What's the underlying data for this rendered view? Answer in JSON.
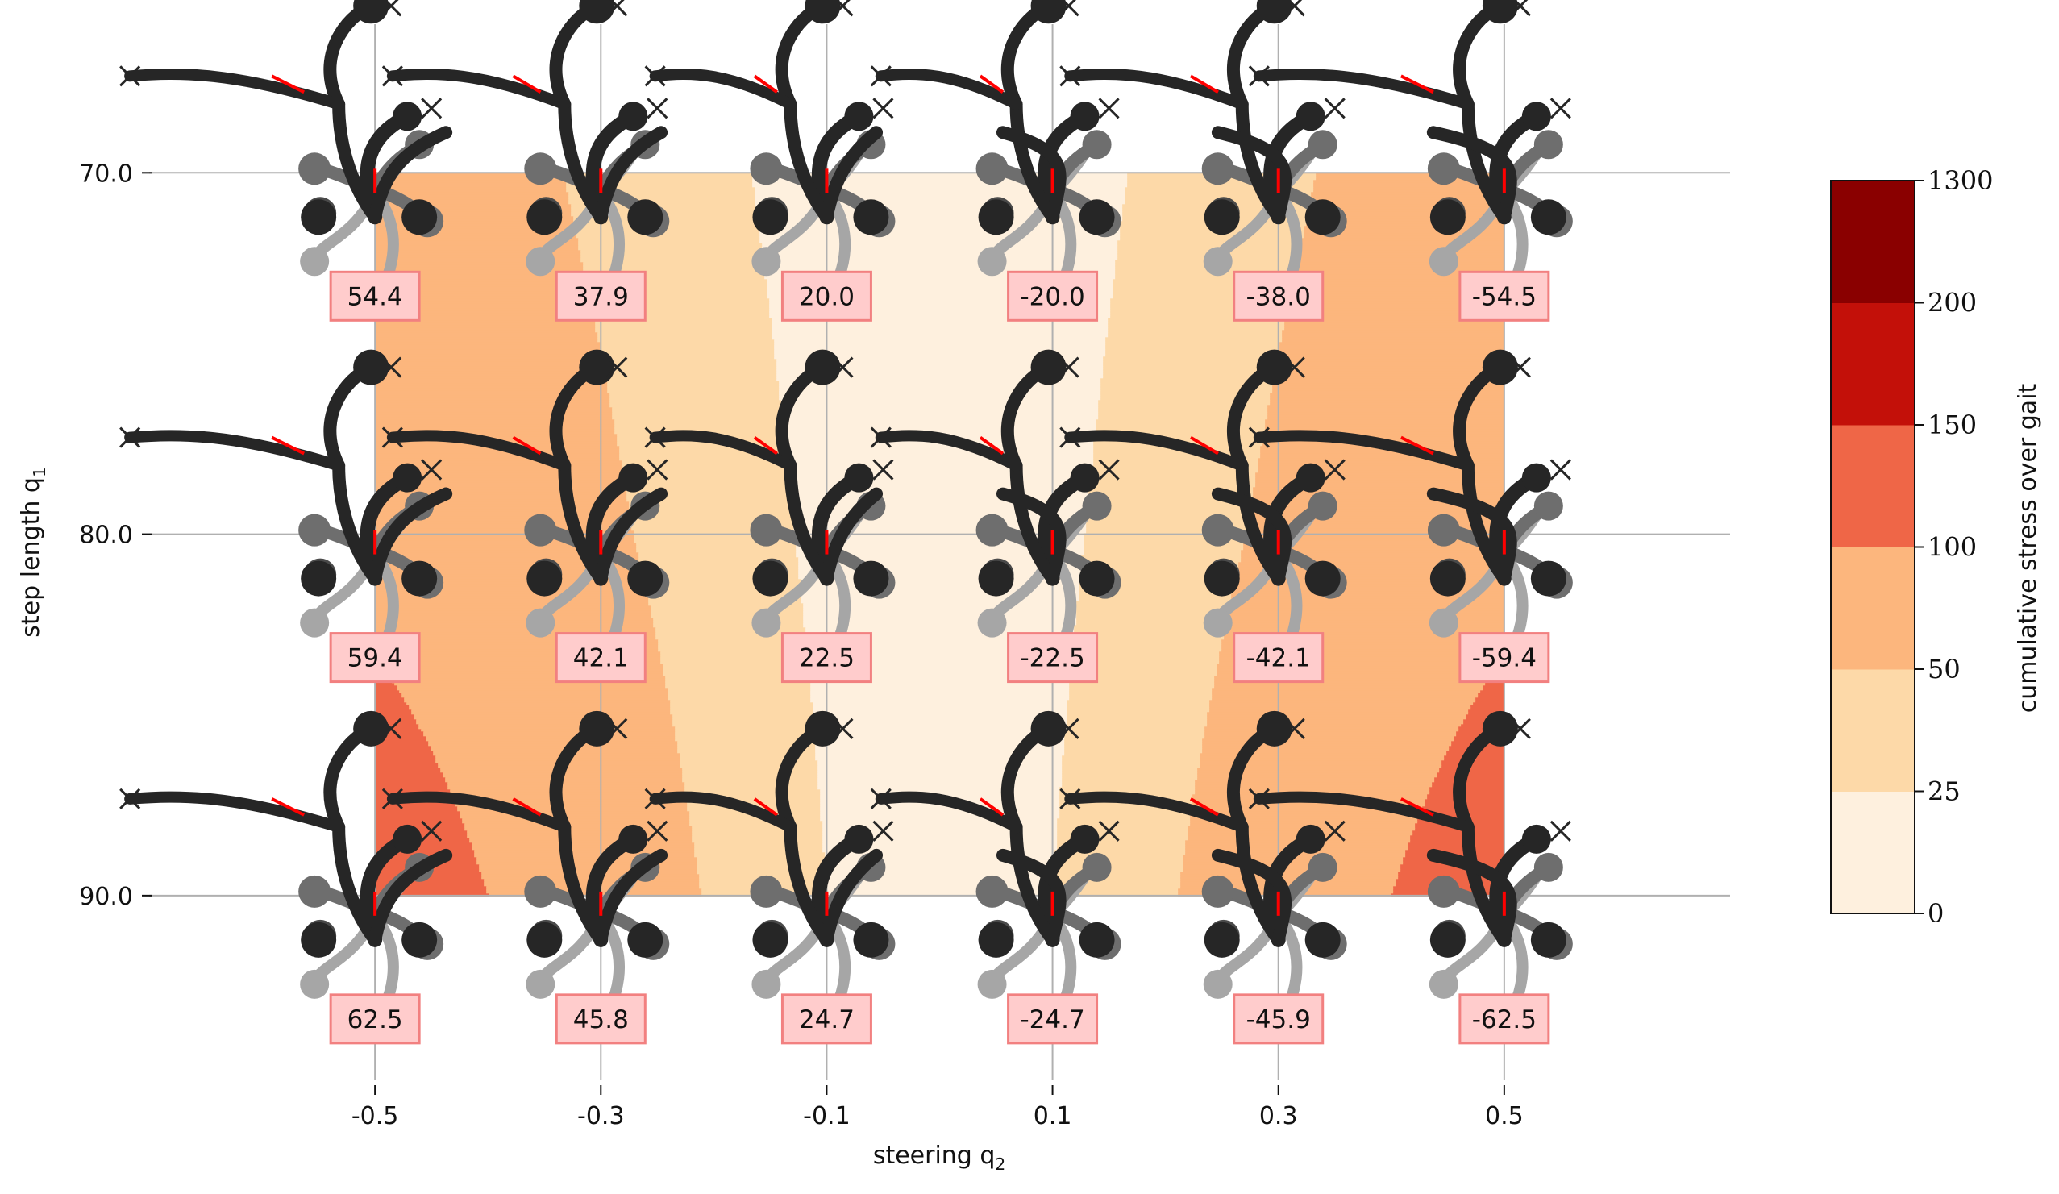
{
  "chart_data": {
    "type": "heatmap",
    "xlabel": "steering q",
    "xlabel_sub": "2",
    "ylabel": "step length q",
    "ylabel_sub": "1",
    "x_ticks": [
      "-0.5",
      "-0.3",
      "-0.1",
      "0.1",
      "0.3",
      "0.5"
    ],
    "y_ticks": [
      "70.0",
      "80.0",
      "90.0"
    ],
    "x_values": [
      -0.5,
      -0.3,
      -0.1,
      0.1,
      0.3,
      0.5
    ],
    "y_values": [
      70.0,
      80.0,
      90.0
    ],
    "xlim": [
      -0.7,
      0.7
    ],
    "ylim": [
      66.0,
      95.0
    ],
    "y_inverted": true,
    "grid": true,
    "annotations": [
      [
        "54.4",
        "37.9",
        "20.0",
        "-20.0",
        "-38.0",
        "-54.5"
      ],
      [
        "59.4",
        "42.1",
        "22.5",
        "-22.5",
        "-42.1",
        "-59.4"
      ],
      [
        "62.5",
        "45.8",
        "24.7",
        "-24.7",
        "-45.9",
        "-62.5"
      ]
    ],
    "stress_estimate": [
      [
        75,
        45,
        15,
        15,
        45,
        75
      ],
      [
        85,
        55,
        20,
        20,
        55,
        85
      ],
      [
        130,
        70,
        25,
        25,
        70,
        130
      ]
    ],
    "colorbar": {
      "label": "cumulative stress over gait",
      "levels": [
        0,
        25,
        50,
        100,
        150,
        200,
        1300
      ],
      "tick_labels": [
        "0",
        "25",
        "50",
        "100",
        "150",
        "200",
        "1300"
      ],
      "colors": [
        "#fef0de",
        "#fdd9a8",
        "#fcb67d",
        "#ef6647",
        "#c31009",
        "#8a0000"
      ]
    },
    "series": []
  }
}
